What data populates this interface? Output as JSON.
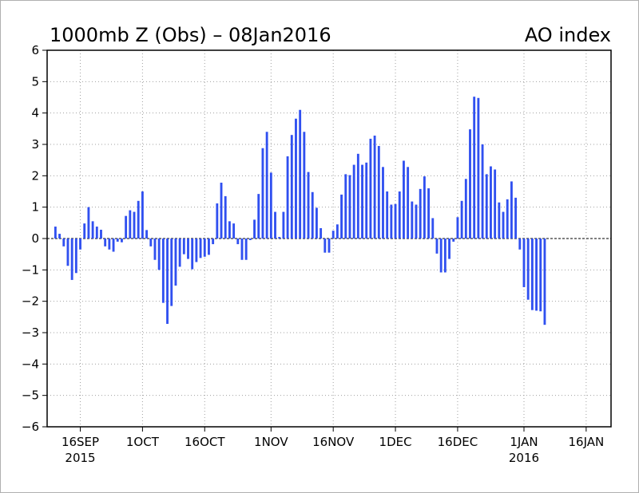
{
  "chart_data": {
    "type": "bar",
    "title": "1000mb Z (Obs) – 08Jan2016",
    "subtitle": "AO index",
    "xlabel": "",
    "ylabel": "",
    "ylim": [
      -6,
      6
    ],
    "yticks": [
      -6,
      -5,
      -4,
      -3,
      -2,
      -1,
      0,
      1,
      2,
      3,
      4,
      5,
      6
    ],
    "grid": true,
    "bar_color": "#3050f0",
    "zero_line_color": "#000000",
    "x_start_date": "2015-09-10",
    "xlim": [
      "2015-09-08",
      "2016-01-22"
    ],
    "xticks": [
      {
        "date": "2015-09-16",
        "label": "16SEP",
        "year": "2015"
      },
      {
        "date": "2015-10-01",
        "label": "1OCT",
        "year": ""
      },
      {
        "date": "2015-10-16",
        "label": "16OCT",
        "year": ""
      },
      {
        "date": "2015-11-01",
        "label": "1NOV",
        "year": ""
      },
      {
        "date": "2015-11-16",
        "label": "16NOV",
        "year": ""
      },
      {
        "date": "2015-12-01",
        "label": "1DEC",
        "year": ""
      },
      {
        "date": "2015-12-16",
        "label": "16DEC",
        "year": ""
      },
      {
        "date": "2016-01-01",
        "label": "1JAN",
        "year": "2016"
      },
      {
        "date": "2016-01-16",
        "label": "16JAN",
        "year": ""
      }
    ],
    "values": [
      0.38,
      0.15,
      -0.25,
      -0.87,
      -1.32,
      -1.1,
      -0.35,
      0.48,
      1.0,
      0.55,
      0.38,
      0.28,
      -0.25,
      -0.35,
      -0.42,
      -0.1,
      -0.12,
      0.72,
      0.9,
      0.85,
      1.2,
      1.5,
      0.27,
      -0.25,
      -0.68,
      -1.0,
      -2.05,
      -2.72,
      -2.15,
      -1.5,
      -0.9,
      -0.5,
      -0.65,
      -0.98,
      -0.75,
      -0.62,
      -0.58,
      -0.52,
      -0.18,
      1.12,
      1.78,
      1.35,
      0.55,
      0.48,
      -0.18,
      -0.68,
      -0.68,
      -0.05,
      0.6,
      1.42,
      2.88,
      3.4,
      2.1,
      0.85,
      0.05,
      0.85,
      2.62,
      3.3,
      3.82,
      4.1,
      3.4,
      2.12,
      1.48,
      0.98,
      0.33,
      -0.45,
      -0.45,
      0.25,
      0.45,
      1.4,
      2.05,
      2.02,
      2.35,
      2.7,
      2.35,
      2.42,
      3.18,
      3.28,
      2.95,
      2.28,
      1.5,
      1.08,
      1.1,
      1.5,
      2.48,
      2.28,
      1.18,
      1.08,
      1.58,
      1.98,
      1.6,
      0.65,
      -0.48,
      -1.08,
      -1.08,
      -0.65,
      -0.1,
      0.68,
      1.2,
      1.9,
      3.48,
      4.52,
      4.48,
      3.0,
      2.05,
      2.3,
      2.2,
      1.15,
      0.85,
      1.25,
      1.82,
      1.3,
      -0.35,
      -1.55,
      -1.95,
      -2.28,
      -2.3,
      -2.32,
      -2.75
    ]
  }
}
